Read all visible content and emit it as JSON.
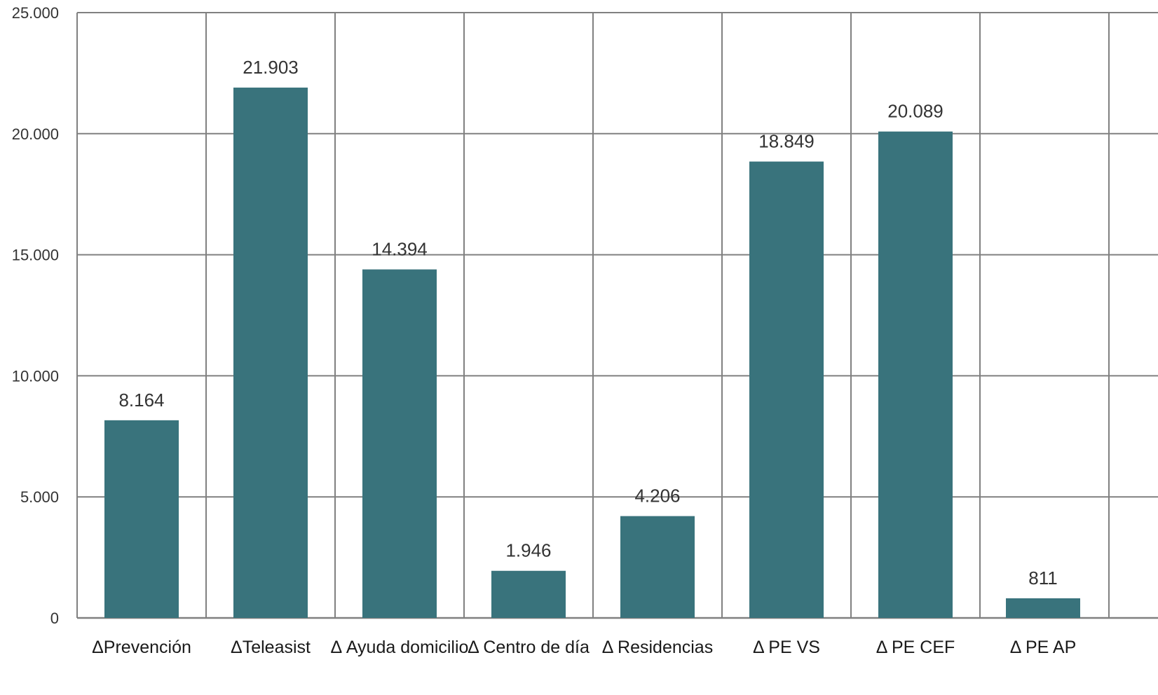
{
  "chart_data": {
    "type": "bar",
    "categories": [
      "ΔPrevención",
      "ΔTeleasist",
      "Δ Ayuda domicilio",
      "Δ Centro de día",
      "Δ Residencias",
      "Δ PE VS",
      "Δ PE CEF",
      "Δ PE AP"
    ],
    "values": [
      8164,
      21903,
      14394,
      1946,
      4206,
      18849,
      20089,
      811
    ],
    "value_labels": [
      "8.164",
      "21.903",
      "14.394",
      "1.946",
      "4.206",
      "18.849",
      "20.089",
      "811"
    ],
    "ylim": [
      0,
      25000
    ],
    "yticks": [
      0,
      5000,
      10000,
      15000,
      20000,
      25000
    ],
    "ytick_labels": [
      "0",
      "5.000",
      "10.000",
      "15.000",
      "20.000",
      "25.000"
    ],
    "grid": true,
    "legend": "none",
    "bar_color": "#39737c",
    "grid_color": "#808080"
  }
}
